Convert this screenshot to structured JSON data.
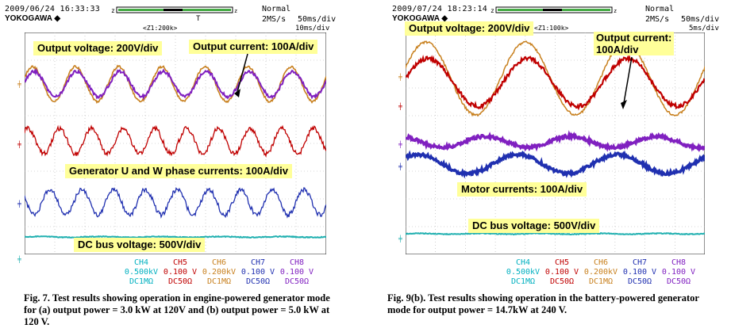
{
  "left": {
    "datetime": "2009/06/24 16:33:33",
    "brand": "YOKOGAWA",
    "mode": "Normal",
    "sample_rate": "2MS/s",
    "timebase": "50ms/div",
    "zoom": "<Z1:200k>",
    "zoom_div": "10ms/div",
    "trigger_mark": "T",
    "labels": {
      "output_voltage": "Output voltage: 200V/div",
      "output_current": "Output current: 100A/div",
      "generator_currents": "Generator U and W phase currents: 100A/div",
      "dc_bus": "DC bus voltage: 500V/div"
    },
    "caption": "Fig. 7.  Test results showing operation in engine-powered generator mode for (a) output power = 3.0 kW at 120V and (b) output power = 5.0 kW at 120 V."
  },
  "right": {
    "datetime": "2009/07/24 18:23:14",
    "brand": "YOKOGAWA",
    "mode": "Normal",
    "sample_rate": "2MS/s",
    "timebase": "50ms/div",
    "zoom": "<Z1:100k>",
    "zoom_div": "5ms/div",
    "labels": {
      "output_voltage": "Output voltage: 200V/div",
      "output_current": "Output current:\n100A/div",
      "motor_currents": "Motor currents: 100A/div",
      "dc_bus": "DC bus voltage: 500V/div"
    },
    "caption": "Fig. 9(b).  Test results showing operation in the battery-powered generator mode for output power = 14.7kW at 240 V."
  },
  "channels": [
    {
      "name": "CH4",
      "scale": "0.500kV",
      "coupling": "DC1MΩ",
      "color": "#00b0c0"
    },
    {
      "name": "CH5",
      "scale": "0.100 V",
      "coupling": "DC50Ω",
      "color": "#c00000"
    },
    {
      "name": "CH6",
      "scale": "0.200kV",
      "coupling": "DC1MΩ",
      "color": "#c8801e"
    },
    {
      "name": "CH7",
      "scale": "0.100 V",
      "coupling": "DC50Ω",
      "color": "#2030b0"
    },
    {
      "name": "CH8",
      "scale": "0.100 V",
      "coupling": "DC50Ω",
      "color": "#8020c0"
    }
  ],
  "trace_colors": {
    "orange": "#c8801e",
    "red": "#c00000",
    "purple": "#8020c0",
    "blue": "#2030b0",
    "cyan": "#20b0b0",
    "grid": "#b0b0b0"
  }
}
